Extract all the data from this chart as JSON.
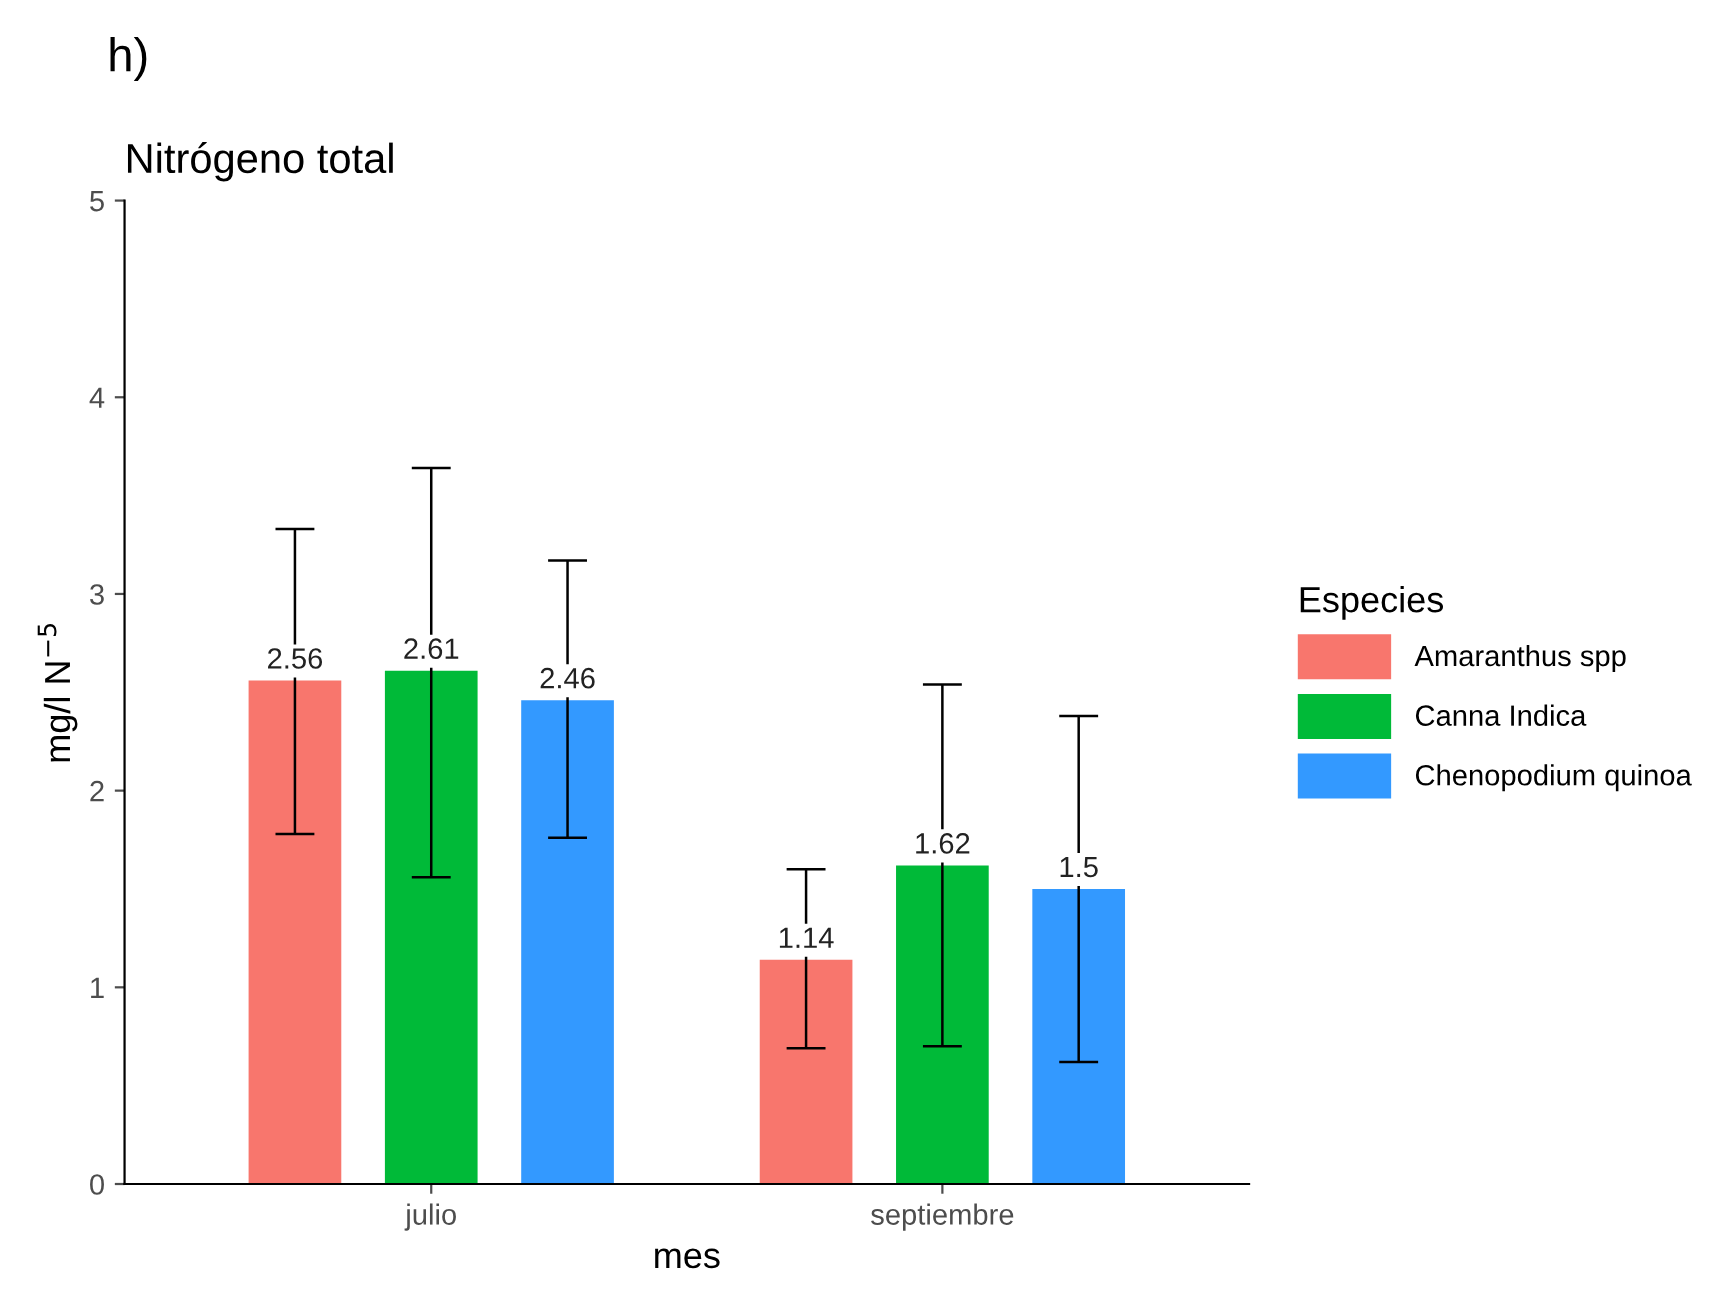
{
  "chart_data": {
    "type": "bar",
    "title": "Nitrógeno total",
    "xlabel": "mes",
    "ylabel": "mg/l N$^{−5}$",
    "legend_title": "Especies",
    "annotations": [
      "h)"
    ],
    "categories": [
      "julio",
      "septiembre"
    ],
    "series": [
      {
        "name": "Amaranthus spp",
        "color": "#f8766d",
        "values": [
          2.56,
          1.14
        ],
        "errors": [
          [
            1.78,
            3.33
          ],
          [
            0.69,
            1.6
          ]
        ],
        "value_labels": [
          "2.56",
          "1.14"
        ]
      },
      {
        "name": "Canna Indica",
        "color": "#00ba38",
        "values": [
          2.61,
          1.62
        ],
        "errors": [
          [
            1.56,
            3.64
          ],
          [
            0.7,
            2.54
          ]
        ],
        "value_labels": [
          "2.61",
          "1.62"
        ]
      },
      {
        "name": "Chenopodium quinoa",
        "color": "#3399ff",
        "values": [
          2.46,
          1.5
        ],
        "errors": [
          [
            1.76,
            3.17
          ],
          [
            0.62,
            2.38
          ]
        ],
        "value_labels": [
          "2.46",
          "1.5"
        ]
      }
    ],
    "ylim": [
      0,
      5
    ],
    "yticks": [
      0,
      1,
      2,
      3,
      4,
      5
    ],
    "grid": false,
    "legend": "right"
  }
}
